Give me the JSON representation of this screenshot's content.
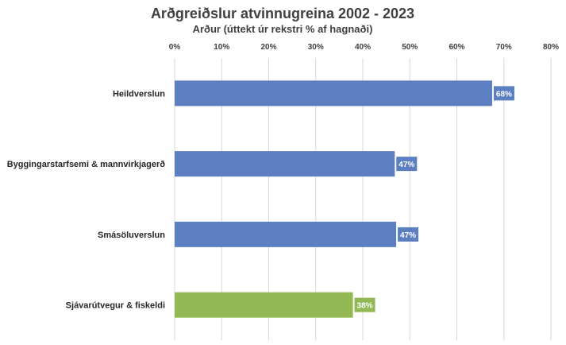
{
  "chart_data": {
    "type": "bar",
    "orientation": "horizontal",
    "title": "Arðgreiðslur atvinnugreina 2002 - 2023",
    "subtitle": "Arður (úttekt úr rekstri % af hagnaði)",
    "xlabel": "",
    "ylabel": "",
    "xlim": [
      0,
      0.8
    ],
    "x_ticks": [
      "0%",
      "10%",
      "20%",
      "30%",
      "40%",
      "50%",
      "60%",
      "70%",
      "80%"
    ],
    "x_axis_position": "top",
    "grid": "vertical",
    "legend": "none",
    "categories": [
      "Heildverslun",
      "Byggingarstarfsemi & mannvirkjagerð",
      "Smásöluverslun",
      "Sjávarútvegur & fiskeldi"
    ],
    "values": [
      0.675,
      0.468,
      0.471,
      0.379
    ],
    "data_labels": [
      "68%",
      "47%",
      "47%",
      "38%"
    ],
    "colors": [
      "#5b7fc0",
      "#5b7fc0",
      "#5b7fc0",
      "#92b954"
    ]
  }
}
